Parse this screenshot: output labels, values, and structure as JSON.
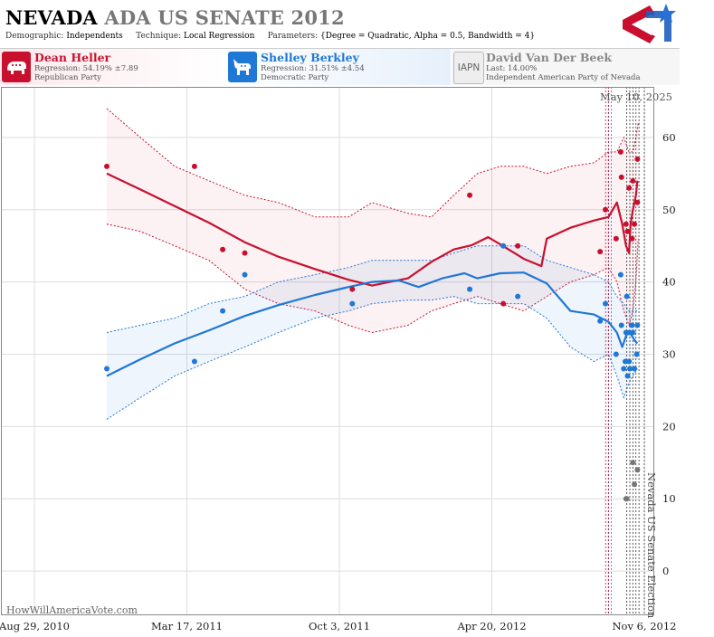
{
  "header": {
    "title_state": "NEVADA",
    "title_rest": "ADA US SENATE 2012",
    "demographic_label": "Demographic:",
    "demographic_value": "Independents",
    "technique_label": "Technique:",
    "technique_value": "Local Regression",
    "parameters_label": "Parameters:",
    "parameters_value": "{Degree = Quadratic, Alpha = 0.5, Bandwidth = 4}"
  },
  "candidates": [
    {
      "name": "Dean Heller",
      "line1": "Regression: 54.19% ±7.89",
      "line2": "Republican Party",
      "color": "#c8102e",
      "icon": "elephant-icon"
    },
    {
      "name": "Shelley Berkley",
      "line1": "Regression: 31.51% ±4.54",
      "line2": "Democratic Party",
      "color": "#1f77d6",
      "icon": "donkey-icon"
    },
    {
      "name": "David Van Der Beek",
      "line1": "Last: 14.00%",
      "line2": "Independent American Party  of Nevada",
      "color": "#777777",
      "icon_text": "IAPN"
    }
  ],
  "chart_data": {
    "type": "scatter",
    "x_type": "date",
    "xlim": [
      "2010-08-29",
      "2012-11-06"
    ],
    "ylim": [
      -6,
      67
    ],
    "x_tick_labels": [
      "Aug 29, 2010",
      "Mar 17, 2011",
      "Oct 3, 2011",
      "Apr 20, 2012",
      "Nov 6, 2012"
    ],
    "x_tick_dates": [
      "2010-08-29",
      "2011-03-17",
      "2011-10-03",
      "2012-04-20",
      "2012-11-06"
    ],
    "y_ticks": [
      0,
      10,
      20,
      30,
      40,
      50,
      60
    ],
    "date_label": "May 10, 2025",
    "event_label": "Nevada US Senate Election",
    "watermark": "HowWillAmericaVote.com",
    "vertical_markers": [
      "2012-09-18",
      "2012-09-22",
      "2012-10-14",
      "2012-10-18",
      "2012-10-22",
      "2012-10-26",
      "2012-10-30",
      "2012-11-06"
    ],
    "series": [
      {
        "name": "Dean Heller",
        "color": "#c8102e",
        "points": [
          [
            "2010-12-02",
            56
          ],
          [
            "2011-03-27",
            56
          ],
          [
            "2011-05-03",
            44.5
          ],
          [
            "2011-06-01",
            44
          ],
          [
            "2011-10-20",
            39
          ],
          [
            "2012-03-22",
            52
          ],
          [
            "2012-05-05",
            37
          ],
          [
            "2012-05-24",
            45
          ],
          [
            "2012-09-09",
            44.2
          ],
          [
            "2012-09-16",
            50
          ],
          [
            "2012-09-30",
            46
          ],
          [
            "2012-10-06",
            58
          ],
          [
            "2012-10-07",
            54.5
          ],
          [
            "2012-10-13",
            48
          ],
          [
            "2012-10-15",
            47
          ],
          [
            "2012-10-17",
            53
          ],
          [
            "2012-10-21",
            46
          ],
          [
            "2012-10-22",
            54
          ],
          [
            "2012-10-24",
            48
          ],
          [
            "2012-10-28",
            57
          ],
          [
            "2012-10-28",
            51
          ]
        ],
        "regression": [
          [
            "2010-12-02",
            55
          ],
          [
            "2011-01-15",
            52.8
          ],
          [
            "2011-03-01",
            50.5
          ],
          [
            "2011-04-15",
            48.2
          ],
          [
            "2011-06-01",
            45.5
          ],
          [
            "2011-07-15",
            43.5
          ],
          [
            "2011-09-01",
            41.8
          ],
          [
            "2011-10-15",
            40.3
          ],
          [
            "2011-11-15",
            39.5
          ],
          [
            "2012-01-01",
            40.5
          ],
          [
            "2012-02-01",
            42.8
          ],
          [
            "2012-03-01",
            44.5
          ],
          [
            "2012-03-25",
            45.1
          ],
          [
            "2012-04-15",
            46.2
          ],
          [
            "2012-05-01",
            45.2
          ],
          [
            "2012-06-01",
            43.2
          ],
          [
            "2012-06-24",
            42.2
          ],
          [
            "2012-07-01",
            46
          ],
          [
            "2012-08-01",
            47.5
          ],
          [
            "2012-09-01",
            48.5
          ],
          [
            "2012-09-20",
            49
          ],
          [
            "2012-10-01",
            51
          ],
          [
            "2012-10-08",
            48
          ],
          [
            "2012-10-13",
            45
          ],
          [
            "2012-10-17",
            44
          ],
          [
            "2012-10-19",
            48
          ],
          [
            "2012-10-22",
            50
          ],
          [
            "2012-10-26",
            52
          ],
          [
            "2012-10-28",
            54
          ]
        ],
        "upper": [
          [
            "2010-12-02",
            64
          ],
          [
            "2011-01-15",
            60
          ],
          [
            "2011-03-01",
            56
          ],
          [
            "2011-04-15",
            54
          ],
          [
            "2011-06-01",
            52
          ],
          [
            "2011-07-15",
            51
          ],
          [
            "2011-09-01",
            49
          ],
          [
            "2011-10-15",
            49
          ],
          [
            "2011-11-15",
            51
          ],
          [
            "2012-01-01",
            49.5
          ],
          [
            "2012-02-01",
            49
          ],
          [
            "2012-03-01",
            52
          ],
          [
            "2012-04-01",
            55
          ],
          [
            "2012-05-01",
            56
          ],
          [
            "2012-06-01",
            56
          ],
          [
            "2012-07-01",
            55
          ],
          [
            "2012-08-01",
            56
          ],
          [
            "2012-09-01",
            56.5
          ],
          [
            "2012-09-20",
            58
          ],
          [
            "2012-10-01",
            58
          ],
          [
            "2012-10-10",
            60
          ],
          [
            "2012-10-17",
            58
          ],
          [
            "2012-10-22",
            58
          ],
          [
            "2012-10-26",
            60
          ],
          [
            "2012-10-29",
            62
          ]
        ],
        "lower": [
          [
            "2010-12-02",
            48
          ],
          [
            "2011-01-15",
            47
          ],
          [
            "2011-03-01",
            45
          ],
          [
            "2011-04-15",
            43
          ],
          [
            "2011-06-01",
            39
          ],
          [
            "2011-07-15",
            37
          ],
          [
            "2011-09-01",
            36
          ],
          [
            "2011-10-15",
            34
          ],
          [
            "2011-11-15",
            33
          ],
          [
            "2012-01-01",
            34
          ],
          [
            "2012-02-01",
            36
          ],
          [
            "2012-03-01",
            37
          ],
          [
            "2012-04-01",
            38
          ],
          [
            "2012-05-01",
            37
          ],
          [
            "2012-06-01",
            36
          ],
          [
            "2012-07-01",
            38
          ],
          [
            "2012-08-01",
            40
          ],
          [
            "2012-09-01",
            41
          ],
          [
            "2012-09-20",
            42
          ],
          [
            "2012-10-01",
            40
          ],
          [
            "2012-10-10",
            36
          ],
          [
            "2012-10-17",
            34
          ],
          [
            "2012-10-22",
            36
          ],
          [
            "2012-10-26",
            40
          ],
          [
            "2012-10-29",
            46
          ]
        ]
      },
      {
        "name": "Shelley Berkley",
        "color": "#1f77d6",
        "points": [
          [
            "2010-12-02",
            28
          ],
          [
            "2011-03-27",
            29
          ],
          [
            "2011-05-03",
            36
          ],
          [
            "2011-06-01",
            41
          ],
          [
            "2011-10-20",
            37
          ],
          [
            "2012-03-22",
            39
          ],
          [
            "2012-05-05",
            45
          ],
          [
            "2012-05-24",
            38
          ],
          [
            "2012-09-09",
            34.6
          ],
          [
            "2012-09-16",
            37
          ],
          [
            "2012-09-30",
            30
          ],
          [
            "2012-10-06",
            41
          ],
          [
            "2012-10-07",
            34
          ],
          [
            "2012-10-10",
            28
          ],
          [
            "2012-10-12",
            29
          ],
          [
            "2012-10-13",
            33
          ],
          [
            "2012-10-14",
            38
          ],
          [
            "2012-10-15",
            27
          ],
          [
            "2012-10-17",
            29
          ],
          [
            "2012-10-17",
            33
          ],
          [
            "2012-10-18",
            28
          ],
          [
            "2012-10-21",
            34
          ],
          [
            "2012-10-22",
            33
          ],
          [
            "2012-10-24",
            28
          ],
          [
            "2012-10-27",
            30
          ],
          [
            "2012-10-28",
            34
          ]
        ],
        "regression": [
          [
            "2010-12-02",
            27
          ],
          [
            "2011-01-15",
            29.3
          ],
          [
            "2011-03-01",
            31.5
          ],
          [
            "2011-04-15",
            33.3
          ],
          [
            "2011-06-01",
            35.3
          ],
          [
            "2011-07-15",
            36.8
          ],
          [
            "2011-09-01",
            38.2
          ],
          [
            "2011-10-15",
            39.3
          ],
          [
            "2011-11-15",
            40
          ],
          [
            "2011-12-20",
            40.2
          ],
          [
            "2012-01-15",
            39.3
          ],
          [
            "2012-02-15",
            40.5
          ],
          [
            "2012-03-15",
            41.2
          ],
          [
            "2012-04-01",
            40.5
          ],
          [
            "2012-05-01",
            41.2
          ],
          [
            "2012-06-01",
            41.3
          ],
          [
            "2012-07-01",
            39.8
          ],
          [
            "2012-08-01",
            36
          ],
          [
            "2012-09-01",
            35.5
          ],
          [
            "2012-09-20",
            34.5
          ],
          [
            "2012-10-01",
            33
          ],
          [
            "2012-10-08",
            31
          ],
          [
            "2012-10-13",
            32.5
          ],
          [
            "2012-10-17",
            33.2
          ],
          [
            "2012-10-21",
            32.5
          ],
          [
            "2012-10-25",
            31.8
          ],
          [
            "2012-10-28",
            31.5
          ]
        ],
        "upper": [
          [
            "2010-12-02",
            33
          ],
          [
            "2011-01-15",
            34
          ],
          [
            "2011-03-01",
            35
          ],
          [
            "2011-04-15",
            37
          ],
          [
            "2011-06-01",
            38
          ],
          [
            "2011-07-15",
            40
          ],
          [
            "2011-09-01",
            41
          ],
          [
            "2011-10-15",
            42
          ],
          [
            "2011-11-15",
            43
          ],
          [
            "2012-01-01",
            43
          ],
          [
            "2012-02-01",
            43
          ],
          [
            "2012-03-01",
            44
          ],
          [
            "2012-04-01",
            45
          ],
          [
            "2012-05-01",
            45
          ],
          [
            "2012-06-01",
            45
          ],
          [
            "2012-07-01",
            43
          ],
          [
            "2012-08-01",
            42
          ],
          [
            "2012-09-01",
            41
          ],
          [
            "2012-09-20",
            40
          ],
          [
            "2012-10-01",
            38
          ],
          [
            "2012-10-10",
            37
          ],
          [
            "2012-10-17",
            36
          ],
          [
            "2012-10-22",
            36
          ],
          [
            "2012-10-28",
            36
          ]
        ],
        "lower": [
          [
            "2010-12-02",
            21
          ],
          [
            "2011-01-15",
            24
          ],
          [
            "2011-03-01",
            27
          ],
          [
            "2011-04-15",
            29
          ],
          [
            "2011-06-01",
            31
          ],
          [
            "2011-07-15",
            33
          ],
          [
            "2011-09-01",
            35
          ],
          [
            "2011-10-15",
            36
          ],
          [
            "2011-11-15",
            37
          ],
          [
            "2012-01-01",
            37.5
          ],
          [
            "2012-02-01",
            37.5
          ],
          [
            "2012-03-01",
            38
          ],
          [
            "2012-04-01",
            37
          ],
          [
            "2012-05-01",
            37
          ],
          [
            "2012-06-01",
            37
          ],
          [
            "2012-07-01",
            35
          ],
          [
            "2012-08-01",
            31
          ],
          [
            "2012-09-01",
            29
          ],
          [
            "2012-09-20",
            30
          ],
          [
            "2012-10-01",
            27
          ],
          [
            "2012-10-10",
            24
          ],
          [
            "2012-10-17",
            26
          ],
          [
            "2012-10-22",
            27
          ],
          [
            "2012-10-28",
            28
          ]
        ]
      },
      {
        "name": "David Van Der Beek",
        "color": "#777777",
        "points": [
          [
            "2012-10-13",
            10
          ],
          [
            "2012-10-14",
            10
          ],
          [
            "2012-10-22",
            15
          ],
          [
            "2012-10-24",
            12
          ],
          [
            "2012-10-28",
            14
          ]
        ]
      }
    ]
  }
}
